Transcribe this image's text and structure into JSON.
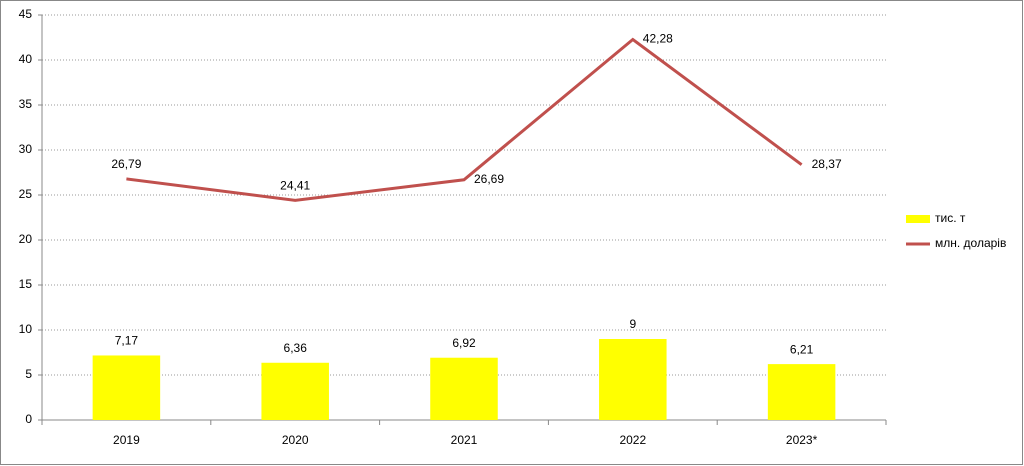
{
  "chart_data": {
    "type": "combo",
    "categories": [
      "2019",
      "2020",
      "2021",
      "2022",
      "2023*"
    ],
    "series": [
      {
        "name": "тис. т",
        "type": "bar",
        "color": "#ffff00",
        "values": [
          7.17,
          6.36,
          6.92,
          9,
          6.21
        ],
        "value_labels": [
          "7,17",
          "6,36",
          "6,92",
          "9",
          "6,21"
        ]
      },
      {
        "name": "млн. доларів",
        "type": "line",
        "color": "#c0504d",
        "values": [
          26.79,
          24.41,
          26.69,
          42.28,
          28.37
        ],
        "value_labels": [
          "26,79",
          "24,41",
          "26,69",
          "42,28",
          "28,37"
        ]
      }
    ],
    "ylim": [
      0,
      45
    ],
    "yticks": [
      0,
      5,
      10,
      15,
      20,
      25,
      30,
      35,
      40,
      45
    ],
    "grid": true,
    "legend": "right"
  }
}
